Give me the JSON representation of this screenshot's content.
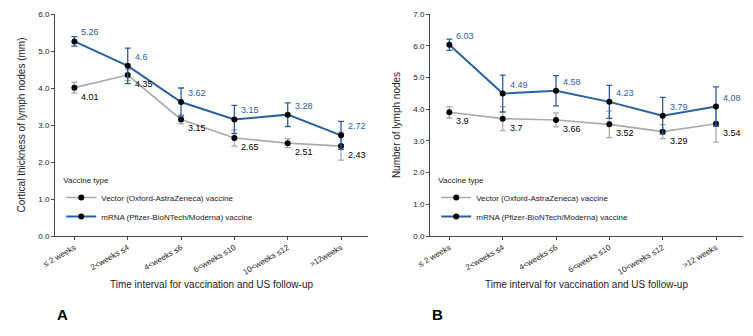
{
  "chart_data": [
    {
      "type": "line",
      "title": "A",
      "xlabel": "Time interval for vaccination and US follow-up",
      "ylabel": "Cortical thickness of lymph nodes (mm)",
      "categories": [
        "≤ 2 weeks",
        "2<weeks ≤4",
        "4<weeks ≤6",
        "6<weeks ≤10",
        "10<weeks ≤12",
        ">12weeks"
      ],
      "series": [
        {
          "name": "Vector (Oxford-AstraZeneca) vaccine",
          "color": "#AAAAAA",
          "values": [
            4.01,
            4.35,
            3.15,
            2.65,
            2.51,
            2.43
          ],
          "errors": [
            0.15,
            0.15,
            0.12,
            0.22,
            0.12,
            0.38
          ]
        },
        {
          "name": "mRNA (Pfizer-BioNTech/Moderna) vaccine",
          "color": "#2B5FA5",
          "values": [
            5.26,
            4.6,
            3.62,
            3.15,
            3.28,
            2.72
          ],
          "errors": [
            0.13,
            0.48,
            0.38,
            0.38,
            0.32,
            0.38
          ]
        }
      ],
      "ylim": [
        0.0,
        6.0
      ],
      "yticks": [
        {
          "value": 0.0,
          "label": "0.0"
        },
        {
          "value": 1.0,
          "label": "1.0"
        },
        {
          "value": 2.0,
          "label": "2.0"
        },
        {
          "value": 3.0,
          "label": "3.0"
        },
        {
          "value": 4.0,
          "label": "4.0"
        },
        {
          "value": 5.0,
          "label": "5.0"
        },
        {
          "value": 6.0,
          "label": "6.0"
        }
      ],
      "legend_title": "Vaccine type",
      "legend": "lower left",
      "grid": false,
      "data_labels": true
    },
    {
      "type": "line",
      "title": "B",
      "xlabel": "Time interval for vaccination and US follow-up",
      "ylabel": "Number of lymph nodes",
      "categories": [
        "≤ 2 weeks",
        "2<weeks ≤4",
        "4<weeks ≤6",
        "6<weeks ≤10",
        "10<weeks ≤12",
        ">12 weeks"
      ],
      "series": [
        {
          "name": "Vector (Oxford-AstraZeneca) vaccine",
          "color": "#AAAAAA",
          "values": [
            3.9,
            3.7,
            3.66,
            3.52,
            3.29,
            3.54
          ],
          "errors": [
            0.18,
            0.38,
            0.22,
            0.42,
            0.22,
            0.58
          ]
        },
        {
          "name": "mRNA (Pfizer-BioNTech/Moderna) vaccine",
          "color": "#2B5FA5",
          "values": [
            6.03,
            4.49,
            4.58,
            4.23,
            3.79,
            4.08
          ],
          "errors": [
            0.18,
            0.58,
            0.48,
            0.52,
            0.58,
            0.62
          ]
        }
      ],
      "ylim": [
        0.0,
        7.0
      ],
      "yticks": [
        {
          "value": 0.0,
          "label": "0.0"
        },
        {
          "value": 1.0,
          "label": "1.0"
        },
        {
          "value": 2.0,
          "label": "2.0"
        },
        {
          "value": 3.0,
          "label": "3.0"
        },
        {
          "value": 4.0,
          "label": "4.0"
        },
        {
          "value": 5.0,
          "label": "5.0"
        },
        {
          "value": 6.0,
          "label": "6.0"
        },
        {
          "value": 7.0,
          "label": "7.0"
        }
      ],
      "legend_title": "Vaccine type",
      "legend": "lower left",
      "grid": false,
      "data_labels": true
    }
  ]
}
